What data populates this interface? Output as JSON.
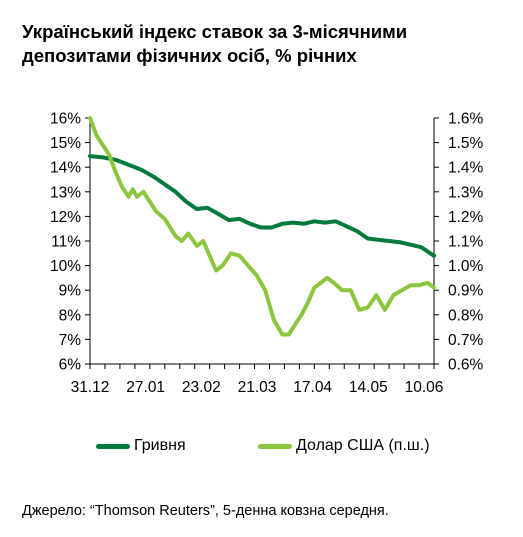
{
  "title_line1": "Український індекс ставок за 3-місячними",
  "title_line2": "депозитами фізичних осіб, % річних",
  "source": "Джерело: “Thomson Reuters”, 5-денна ковзна середня.",
  "colors": {
    "uah": "#007a3d",
    "usd": "#8cc63f"
  },
  "chart_data": {
    "type": "line",
    "x_tick_labels": [
      "31.12",
      "27.01",
      "23.02",
      "21.03",
      "17.04",
      "14.05",
      "10.06"
    ],
    "x_range": [
      0,
      161
    ],
    "y_left": {
      "ticks": [
        "6%",
        "7%",
        "8%",
        "9%",
        "10%",
        "11%",
        "12%",
        "13%",
        "14%",
        "15%",
        "16%"
      ],
      "range": [
        6,
        16
      ]
    },
    "y_right": {
      "ticks": [
        "0.6%",
        "0.7%",
        "0.8%",
        "0.9%",
        "1.0%",
        "1.1%",
        "1.2%",
        "1.3%",
        "1.4%",
        "1.5%",
        "1.6%"
      ],
      "range": [
        0.6,
        1.6
      ]
    },
    "grid": false,
    "legend_position": "bottom",
    "series": [
      {
        "name": "Гривня",
        "axis": "left",
        "x": [
          0,
          6,
          12,
          18,
          24,
          30,
          35,
          40,
          45,
          50,
          55,
          60,
          65,
          70,
          75,
          80,
          85,
          90,
          95,
          100,
          105,
          110,
          115,
          120,
          125,
          130,
          135,
          140,
          145,
          150,
          155,
          161
        ],
        "values": [
          14.45,
          14.4,
          14.3,
          14.1,
          13.9,
          13.6,
          13.3,
          13.0,
          12.6,
          12.3,
          12.35,
          12.1,
          11.85,
          11.9,
          11.7,
          11.55,
          11.55,
          11.7,
          11.75,
          11.7,
          11.8,
          11.75,
          11.8,
          11.6,
          11.4,
          11.1,
          11.05,
          11.0,
          10.95,
          10.85,
          10.75,
          10.4
        ]
      },
      {
        "name": "Долар США (п.ш.)",
        "axis": "right",
        "x": [
          0,
          3,
          6,
          9,
          12,
          15,
          18,
          20,
          22,
          25,
          28,
          31,
          35,
          40,
          43,
          46,
          50,
          53,
          56,
          59,
          62,
          66,
          70,
          74,
          78,
          82,
          86,
          90,
          93,
          96,
          99,
          102,
          105,
          108,
          111,
          114,
          118,
          122,
          126,
          130,
          134,
          138,
          142,
          146,
          150,
          154,
          158,
          161
        ],
        "values": [
          1.6,
          1.53,
          1.49,
          1.45,
          1.38,
          1.32,
          1.28,
          1.31,
          1.28,
          1.3,
          1.26,
          1.22,
          1.19,
          1.12,
          1.1,
          1.13,
          1.08,
          1.1,
          1.04,
          0.98,
          1.0,
          1.05,
          1.04,
          1.0,
          0.96,
          0.9,
          0.78,
          0.72,
          0.72,
          0.76,
          0.8,
          0.85,
          0.91,
          0.93,
          0.95,
          0.93,
          0.9,
          0.9,
          0.82,
          0.83,
          0.88,
          0.82,
          0.88,
          0.9,
          0.92,
          0.92,
          0.93,
          0.91
        ]
      }
    ]
  }
}
